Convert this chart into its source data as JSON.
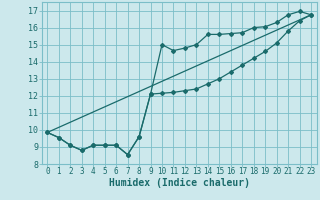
{
  "xlabel": "Humidex (Indice chaleur)",
  "bg_color": "#cce8ec",
  "grid_color": "#7bbec8",
  "line_color": "#1a6b6b",
  "xlim": [
    -0.5,
    23.5
  ],
  "ylim": [
    8.0,
    17.5
  ],
  "xticks": [
    0,
    1,
    2,
    3,
    4,
    5,
    6,
    7,
    8,
    9,
    10,
    11,
    12,
    13,
    14,
    15,
    16,
    17,
    18,
    19,
    20,
    21,
    22,
    23
  ],
  "yticks": [
    8,
    9,
    10,
    11,
    12,
    13,
    14,
    15,
    16,
    17
  ],
  "line1_x": [
    0,
    1,
    2,
    3,
    4,
    5,
    6,
    7,
    8,
    9,
    10,
    11,
    12,
    13,
    14,
    15,
    16,
    17,
    18,
    19,
    20,
    21,
    22,
    23
  ],
  "line1_y": [
    9.85,
    9.55,
    9.1,
    8.8,
    9.1,
    9.1,
    9.1,
    8.55,
    9.6,
    12.1,
    15.0,
    14.65,
    14.8,
    15.0,
    15.6,
    15.6,
    15.65,
    15.7,
    16.0,
    16.05,
    16.3,
    16.75,
    16.95,
    16.75
  ],
  "line2_x": [
    0,
    1,
    2,
    3,
    4,
    5,
    6,
    7,
    8,
    9,
    10,
    11,
    12,
    13,
    14,
    15,
    16,
    17,
    18,
    19,
    20,
    21,
    22,
    23
  ],
  "line2_y": [
    9.85,
    9.55,
    9.1,
    8.8,
    9.1,
    9.1,
    9.1,
    8.55,
    9.6,
    12.1,
    12.15,
    12.2,
    12.3,
    12.4,
    12.7,
    13.0,
    13.4,
    13.8,
    14.2,
    14.6,
    15.1,
    15.8,
    16.4,
    16.75
  ],
  "line3_x": [
    0,
    23
  ],
  "line3_y": [
    9.85,
    16.75
  ],
  "xlabel_fontsize": 7,
  "tick_fontsize": 5.5,
  "ytick_fontsize": 6.0
}
